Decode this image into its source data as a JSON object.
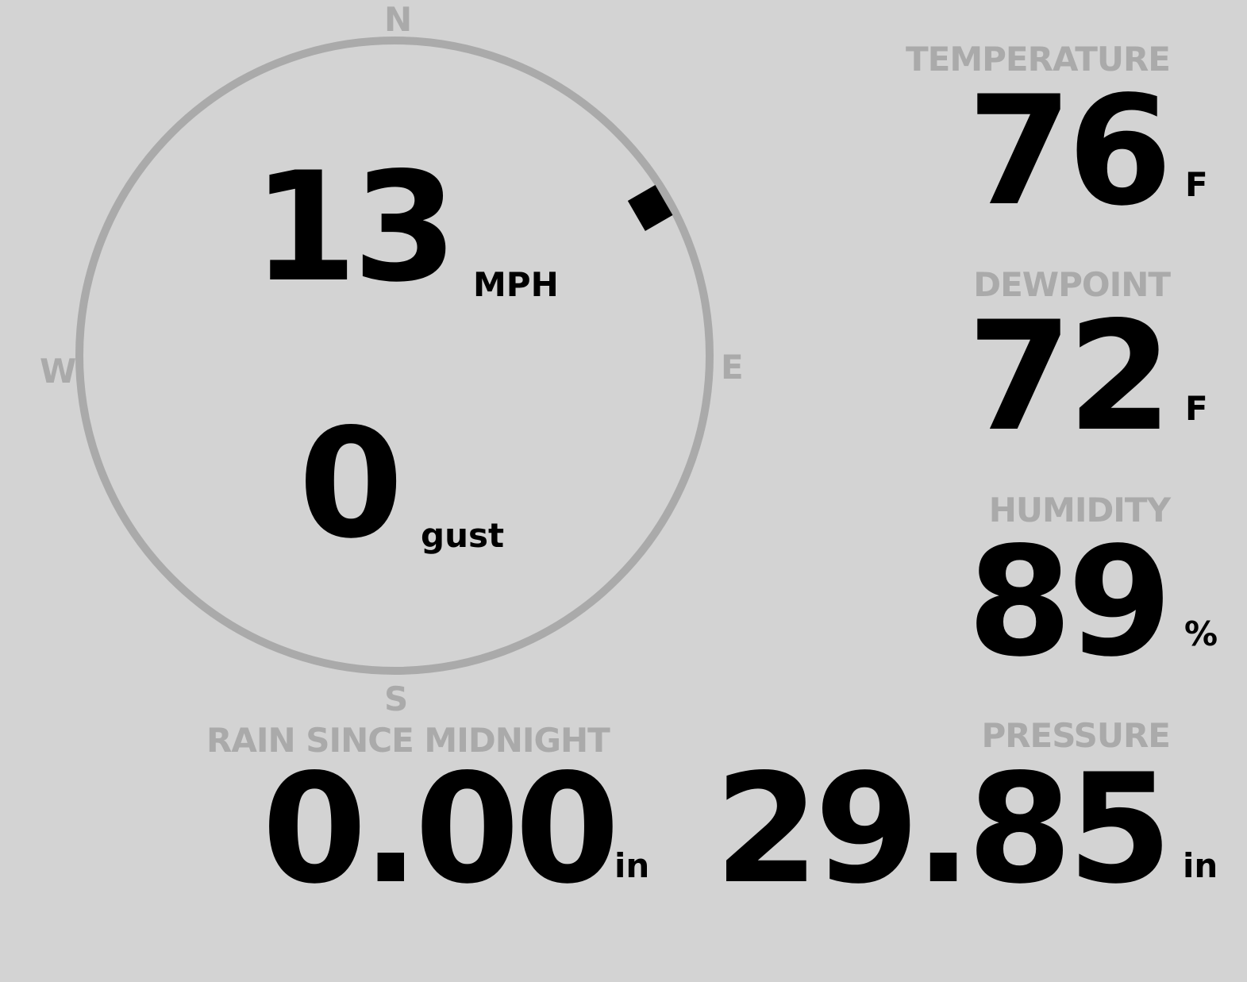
{
  "wind": {
    "speed": "13",
    "speed_unit": "MPH",
    "gust": "0",
    "gust_unit": "gust",
    "direction_degrees": 60,
    "compass": {
      "n": "N",
      "e": "E",
      "s": "S",
      "w": "W"
    }
  },
  "temperature": {
    "label": "TEMPERATURE",
    "value": "76",
    "unit": "F"
  },
  "dewpoint": {
    "label": "DEWPOINT",
    "value": "72",
    "unit": "F"
  },
  "humidity": {
    "label": "HUMIDITY",
    "value": "89",
    "unit": "%"
  },
  "rain": {
    "label": "RAIN SINCE MIDNIGHT",
    "value": "0.00",
    "unit": "in"
  },
  "pressure": {
    "label": "PRESSURE",
    "value": "29.85",
    "unit": "in"
  },
  "colors": {
    "background": "#d3d3d3",
    "label": "#aaaaaa",
    "value": "#000000"
  }
}
